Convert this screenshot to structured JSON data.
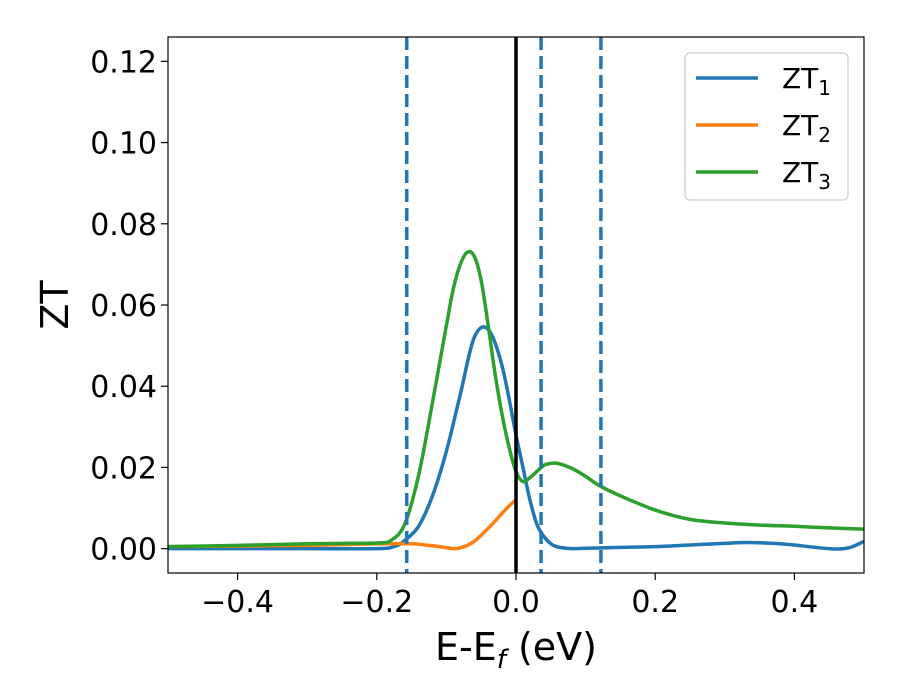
{
  "chart_data": {
    "type": "line",
    "xlabel": "E-E",
    "xlabel_sub": "f",
    "xlabel_unit": " (eV)",
    "ylabel": "ZT",
    "xlim": [
      -0.5,
      0.5
    ],
    "ylim": [
      -0.006,
      0.126
    ],
    "xticks": [
      -0.4,
      -0.2,
      0.0,
      0.2,
      0.4
    ],
    "xtick_labels": [
      "−0.4",
      "−0.2",
      "0.0",
      "0.2",
      "0.4"
    ],
    "yticks": [
      0.0,
      0.02,
      0.04,
      0.06,
      0.08,
      0.1,
      0.12
    ],
    "ytick_labels": [
      "0.00",
      "0.02",
      "0.04",
      "0.06",
      "0.08",
      "0.10",
      "0.12"
    ],
    "grid": false,
    "legend_position": "top-right",
    "vlines": [
      {
        "x": 0.0,
        "style": "solid",
        "color": "#000000"
      },
      {
        "x": -0.157,
        "style": "dashed",
        "color": "#1f77b4"
      },
      {
        "x": 0.036,
        "style": "dashed",
        "color": "#1f77b4"
      },
      {
        "x": 0.122,
        "style": "dashed",
        "color": "#1f77b4"
      }
    ],
    "series": [
      {
        "name": "ZT",
        "sub": "1",
        "color": "#1f77b4",
        "x": [
          -0.5,
          -0.4,
          -0.3,
          -0.2,
          -0.175,
          -0.16,
          -0.14,
          -0.12,
          -0.1,
          -0.08,
          -0.06,
          -0.04,
          -0.02,
          0.0,
          0.01,
          0.02,
          0.03,
          0.04,
          0.05,
          0.06,
          0.08,
          0.1,
          0.15,
          0.2,
          0.25,
          0.3,
          0.33,
          0.37,
          0.4,
          0.43,
          0.46,
          0.48,
          0.5
        ],
        "y": [
          0.0,
          0.0,
          0.0,
          0.0,
          0.0005,
          0.002,
          0.0055,
          0.013,
          0.024,
          0.038,
          0.052,
          0.054,
          0.045,
          0.028,
          0.02,
          0.012,
          0.006,
          0.003,
          0.0012,
          0.0004,
          0.0,
          0.0001,
          0.0003,
          0.0005,
          0.0009,
          0.0013,
          0.0015,
          0.0013,
          0.0009,
          0.0003,
          -0.0001,
          0.0003,
          0.0018
        ]
      },
      {
        "name": "ZT",
        "sub": "2",
        "color": "#ff7f0e",
        "x": [
          -0.5,
          -0.3,
          -0.2,
          -0.15,
          -0.13,
          -0.11,
          -0.09,
          -0.08,
          -0.07,
          -0.06,
          -0.05,
          -0.04,
          -0.03,
          -0.02,
          -0.01,
          0.0
        ],
        "y": [
          0.0005,
          0.0008,
          0.0012,
          0.0012,
          0.0009,
          0.0005,
          0.0,
          0.0002,
          0.0008,
          0.0018,
          0.0033,
          0.005,
          0.0068,
          0.0087,
          0.0105,
          0.012
        ]
      },
      {
        "name": "ZT",
        "sub": "3",
        "color": "#2ca02c",
        "x": [
          -0.5,
          -0.4,
          -0.3,
          -0.25,
          -0.2,
          -0.18,
          -0.16,
          -0.14,
          -0.12,
          -0.1,
          -0.09,
          -0.08,
          -0.07,
          -0.06,
          -0.05,
          -0.04,
          -0.03,
          -0.02,
          -0.01,
          0.0,
          0.01,
          0.02,
          0.03,
          0.04,
          0.05,
          0.06,
          0.08,
          0.1,
          0.12,
          0.15,
          0.2,
          0.25,
          0.3,
          0.35,
          0.4,
          0.45,
          0.5
        ],
        "y": [
          0.0005,
          0.0008,
          0.0012,
          0.0013,
          0.0014,
          0.002,
          0.006,
          0.018,
          0.036,
          0.055,
          0.064,
          0.07,
          0.073,
          0.072,
          0.066,
          0.055,
          0.043,
          0.033,
          0.025,
          0.019,
          0.0165,
          0.0175,
          0.019,
          0.0205,
          0.021,
          0.021,
          0.0198,
          0.0178,
          0.0155,
          0.013,
          0.0095,
          0.0072,
          0.0063,
          0.0058,
          0.0055,
          0.0051,
          0.0048
        ]
      }
    ]
  }
}
